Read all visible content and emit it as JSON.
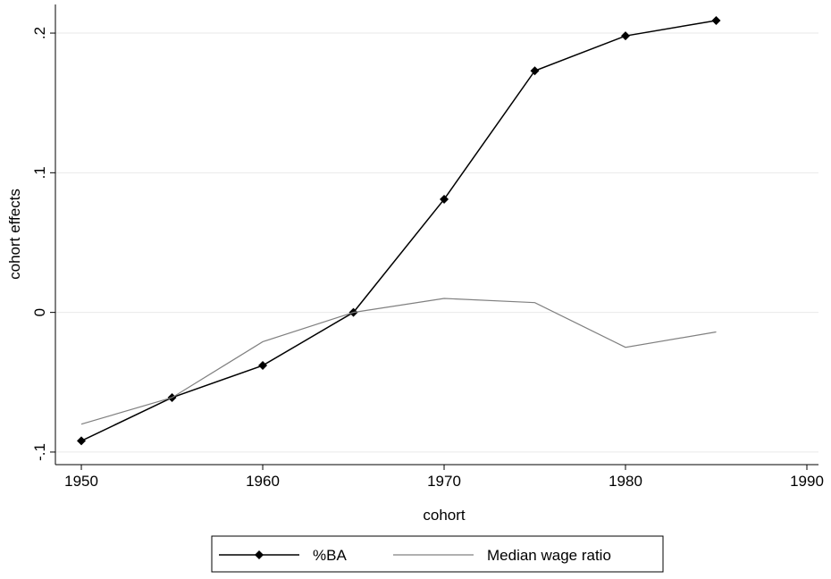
{
  "chart_data": {
    "type": "line",
    "x_label": "cohort",
    "y_label": "cohort effects",
    "x": [
      1950,
      1955,
      1960,
      1965,
      1970,
      1975,
      1980,
      1985
    ],
    "series": [
      {
        "name": "%BA",
        "color": "#000000",
        "marker": "diamond",
        "values": [
          -0.092,
          -0.061,
          -0.038,
          0.0,
          0.081,
          0.173,
          0.198,
          0.209
        ]
      },
      {
        "name": "Median wage ratio",
        "color": "#808080",
        "values": [
          -0.08,
          -0.061,
          -0.021,
          0.0,
          0.01,
          0.007,
          -0.025,
          -0.014
        ]
      }
    ],
    "xlim": [
      1948.57,
      1990.64
    ],
    "xticks": [
      1950,
      1960,
      1970,
      1980,
      1990
    ],
    "ylim": [
      -0.109,
      0.2205
    ],
    "yticks": [
      {
        "value": -0.1,
        "label": "-.1"
      },
      0,
      {
        "value": 0.1,
        "label": ".1"
      },
      {
        "value": 0.2,
        "label": ".2"
      }
    ],
    "grid": true,
    "legend": "bottom"
  }
}
